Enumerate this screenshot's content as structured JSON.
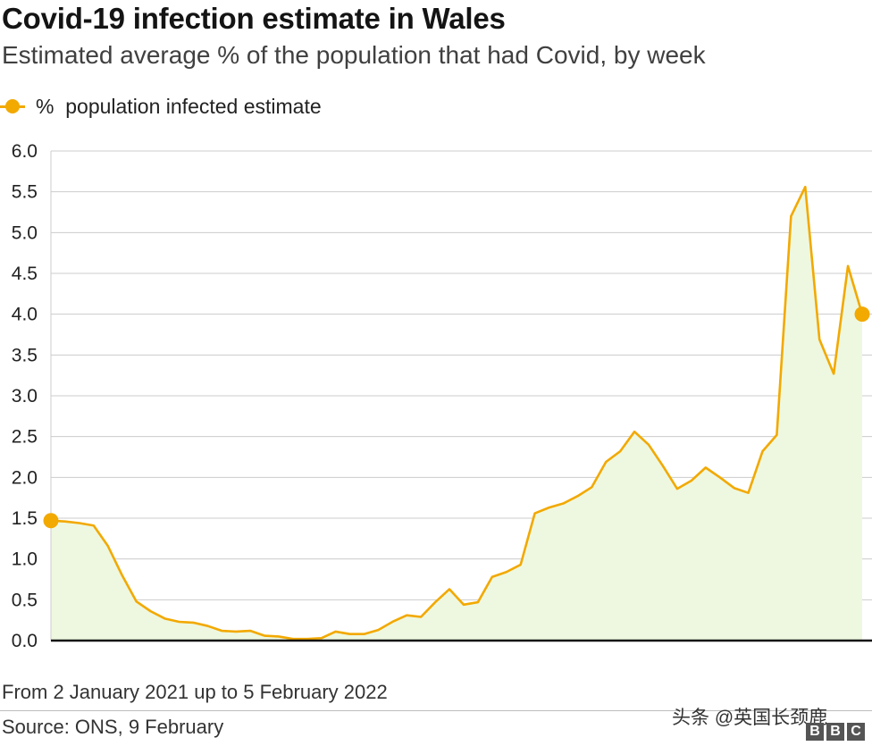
{
  "title": "Covid-19 infection estimate in Wales",
  "subtitle": "Estimated average % of the population that had Covid, by week",
  "legend_label": "%  population infected estimate",
  "footnote": "From 2 January 2021 up to 5 February 2022",
  "source": "Source: ONS, 9 February",
  "watermark": "头条 @英国长颈鹿",
  "brand": [
    "B",
    "B",
    "C"
  ],
  "colors": {
    "line": "#f2a900",
    "fill": "#eef8e0",
    "grid": "#cccccc",
    "axis": "#111111"
  },
  "chart_data": {
    "type": "area",
    "title": "Covid-19 infection estimate in Wales",
    "xlabel": "",
    "ylabel": "",
    "ylim": [
      0,
      6
    ],
    "yticks": [
      "0.0",
      "0.5",
      "1.0",
      "1.5",
      "2.0",
      "2.5",
      "3.0",
      "3.5",
      "4.0",
      "4.5",
      "5.0",
      "5.5",
      "6.0"
    ],
    "grid": true,
    "series": [
      {
        "name": "% population infected estimate",
        "values": [
          1.47,
          1.46,
          1.44,
          1.41,
          1.16,
          0.8,
          0.48,
          0.36,
          0.27,
          0.23,
          0.22,
          0.18,
          0.12,
          0.11,
          0.12,
          0.06,
          0.05,
          0.02,
          0.02,
          0.03,
          0.11,
          0.08,
          0.08,
          0.13,
          0.23,
          0.31,
          0.29,
          0.47,
          0.63,
          0.44,
          0.47,
          0.78,
          0.84,
          0.93,
          1.56,
          1.63,
          1.68,
          1.77,
          1.88,
          2.19,
          2.32,
          2.56,
          2.4,
          2.14,
          1.86,
          1.96,
          2.12,
          2.0,
          1.87,
          1.81,
          2.32,
          2.52,
          5.2,
          5.56,
          3.69,
          3.27,
          4.59,
          4.0
        ]
      }
    ]
  }
}
